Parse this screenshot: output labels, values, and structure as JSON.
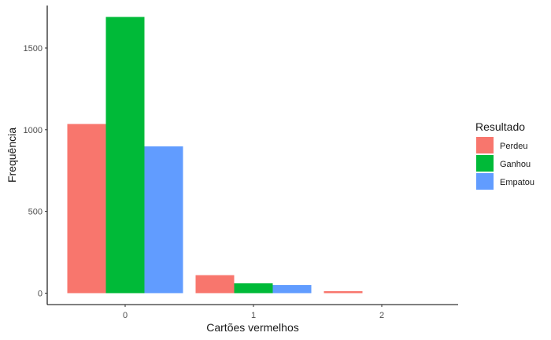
{
  "chart_data": {
    "type": "bar",
    "xlabel": "Cartões vermelhos",
    "ylabel": "Frequência",
    "categories": [
      "0",
      "1",
      "2"
    ],
    "ylim": [
      -70,
      1760
    ],
    "yticks": [
      0,
      500,
      1000,
      1500
    ],
    "grid": false,
    "legend": {
      "title": "Resultado",
      "position": "right"
    },
    "series": [
      {
        "name": "Perdeu",
        "color": "#F8766D",
        "values": [
          1035,
          110,
          12
        ]
      },
      {
        "name": "Ganhou",
        "color": "#00BA38",
        "values": [
          1690,
          60,
          null
        ]
      },
      {
        "name": "Empatou",
        "color": "#619CFF",
        "values": [
          898,
          50,
          null
        ]
      }
    ]
  }
}
